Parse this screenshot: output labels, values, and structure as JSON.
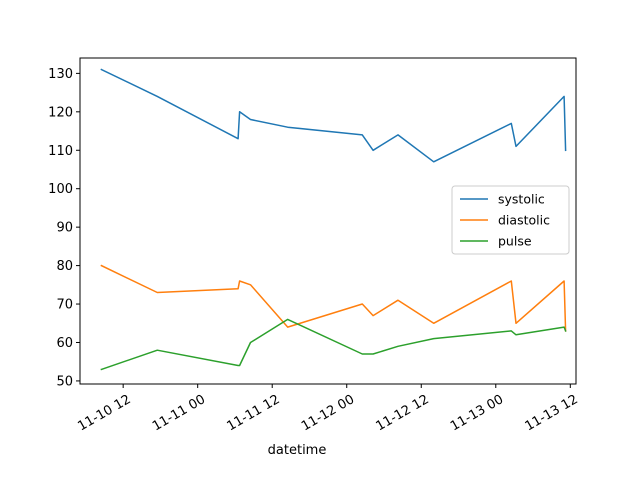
{
  "chart_data": {
    "type": "line",
    "title": "",
    "xlabel": "datetime",
    "ylabel": "",
    "x_axis": "date",
    "xlim": [
      "2024-11-10 05:03",
      "2024-11-13 12:55"
    ],
    "ylim": [
      49.2,
      134
    ],
    "y_ticks": [
      50,
      60,
      70,
      80,
      90,
      100,
      110,
      120,
      130
    ],
    "x_ticks": [
      "2024-11-10 12:00",
      "2024-11-11 00:00",
      "2024-11-11 12:00",
      "2024-11-12 00:00",
      "2024-11-12 12:00",
      "2024-11-13 00:00",
      "2024-11-13 12:00"
    ],
    "x_tick_labels": [
      "11-10 12",
      "11-11 00",
      "11-11 12",
      "11-12 00",
      "11-12 12",
      "11-13 00",
      "11-13 12"
    ],
    "grid": false,
    "legend_position": "center-right",
    "x": [
      "2024-11-10 08:30",
      "2024-11-10 17:30",
      "2024-11-11 06:30",
      "2024-11-11 06:45",
      "2024-11-11 08:30",
      "2024-11-11 14:30",
      "2024-11-12 02:30",
      "2024-11-12 04:15",
      "2024-11-12 08:15",
      "2024-11-12 14:00",
      "2024-11-13 02:30",
      "2024-11-13 03:15",
      "2024-11-13 11:00",
      "2024-11-13 11:15"
    ],
    "series": [
      {
        "name": "systolic",
        "color": "#1f77b4",
        "values": [
          131,
          124,
          113,
          120,
          118,
          116,
          114,
          110,
          114,
          107,
          117,
          111,
          124,
          110
        ]
      },
      {
        "name": "diastolic",
        "color": "#ff7f0e",
        "values": [
          80,
          73,
          74,
          76,
          75,
          64,
          70,
          67,
          71,
          65,
          76,
          65,
          76,
          63
        ]
      },
      {
        "name": "pulse",
        "color": "#2ca02c",
        "values": [
          53,
          58,
          54,
          54,
          60,
          66,
          57,
          57,
          59,
          61,
          63,
          62,
          64,
          63
        ]
      }
    ]
  }
}
